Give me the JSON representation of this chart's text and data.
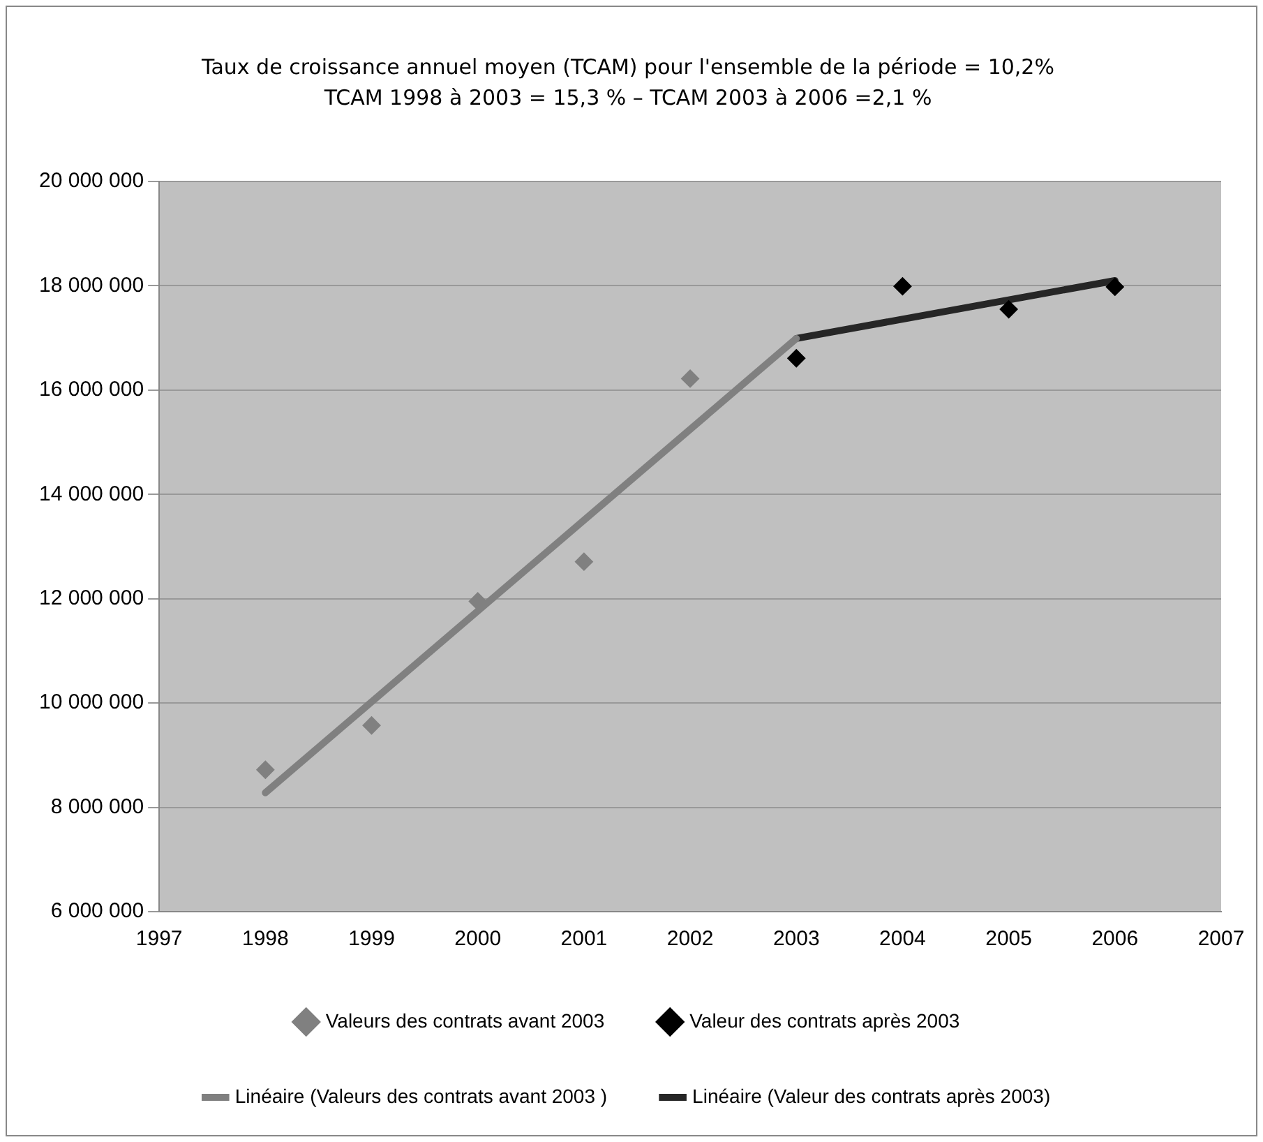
{
  "chart_data": {
    "type": "scatter",
    "title": "Taux de croissance annuel moyen (TCAM) pour l'ensemble de la période = 10,2%",
    "subtitle": "TCAM 1998 à 2003 = 15,3 % – TCAM 2003 à 2006 =2,1 %",
    "series": [
      {
        "name": "Valeurs des contrats avant 2003",
        "type": "scatter",
        "marker": "diamond",
        "color": "#808080",
        "x": [
          1998,
          1999,
          2000,
          2001,
          2002
        ],
        "values": [
          8720000,
          9570000,
          11950000,
          12710000,
          16220000
        ]
      },
      {
        "name": "Valeur des contrats après 2003",
        "type": "scatter",
        "marker": "diamond",
        "color": "#000000",
        "x": [
          2003,
          2004,
          2005,
          2006
        ],
        "values": [
          16610000,
          17990000,
          17550000,
          17980000
        ]
      },
      {
        "name": "Linéaire (Valeurs des contrats avant 2003 )",
        "type": "line",
        "marker": "none",
        "color": "#808080",
        "x": [
          1998,
          2003
        ],
        "values": [
          8280000,
          16990000
        ]
      },
      {
        "name": "Linéaire (Valeur des contrats après 2003)",
        "type": "line",
        "marker": "none",
        "color": "#262626",
        "x": [
          2003,
          2006
        ],
        "values": [
          16990000,
          18100000
        ]
      }
    ],
    "xlim": [
      1997,
      2007
    ],
    "xticks": [
      1997,
      1998,
      1999,
      2000,
      2001,
      2002,
      2003,
      2004,
      2005,
      2006,
      2007
    ],
    "ylim": [
      6000000,
      20000000
    ],
    "yticks": [
      {
        "value": 6000000,
        "label": "6 000 000"
      },
      {
        "value": 8000000,
        "label": "8 000 000"
      },
      {
        "value": 10000000,
        "label": "10 000 000"
      },
      {
        "value": 12000000,
        "label": "12 000 000"
      },
      {
        "value": 14000000,
        "label": "14 000 000"
      },
      {
        "value": 16000000,
        "label": "16 000 000"
      },
      {
        "value": 18000000,
        "label": "18 000 000"
      },
      {
        "value": 20000000,
        "label": "20 000 000"
      }
    ],
    "grid": "y",
    "legend": "bottom"
  }
}
